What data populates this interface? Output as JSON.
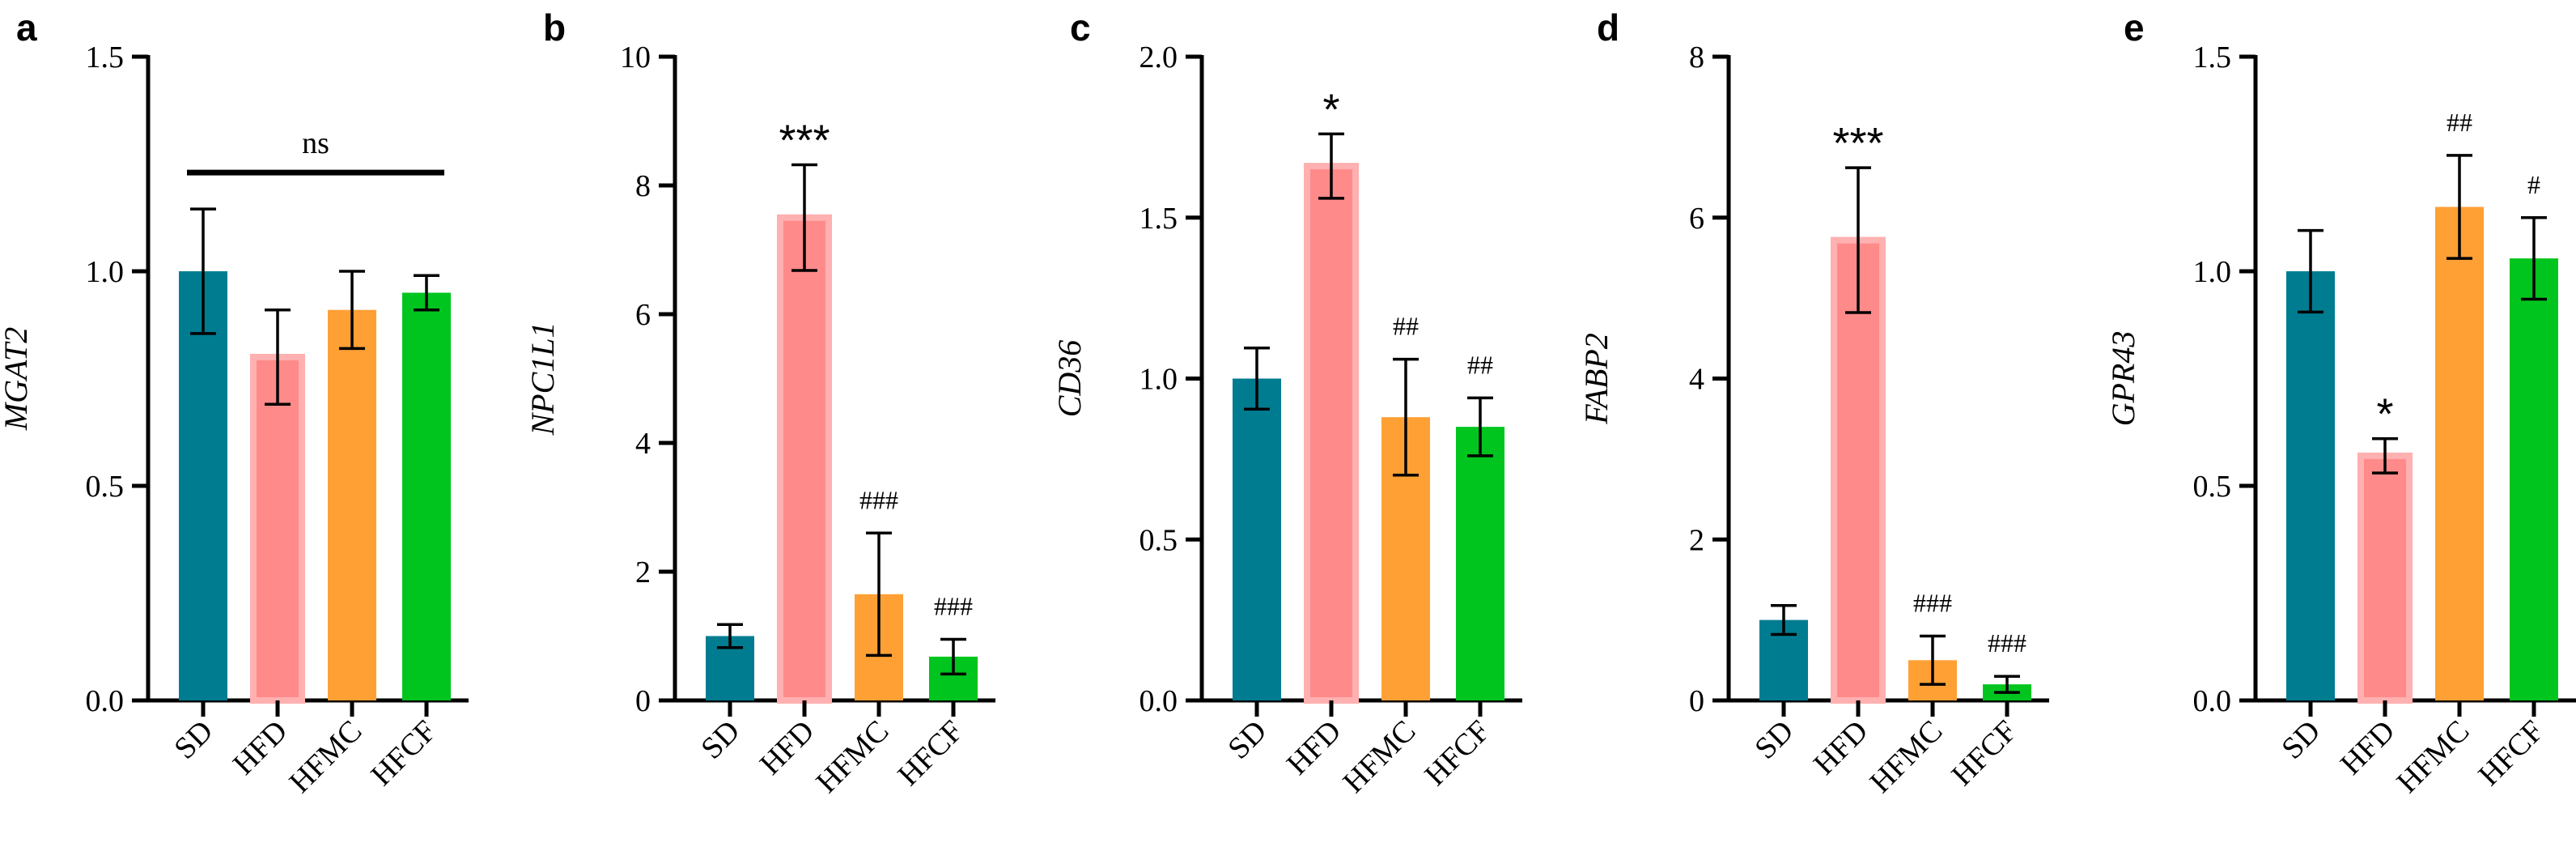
{
  "colors": {
    "SD": "#007c91",
    "HFD": "#ff8a8a",
    "HFD_border": "#ffb0b0",
    "HFMC": "#ffa035",
    "HFCF": "#00c51e"
  },
  "chart_data": [
    {
      "type": "bar",
      "panel": "a",
      "ylabel": "MGAT2",
      "categories": [
        "SD",
        "HFD",
        "HFMC",
        "HFCF"
      ],
      "values": [
        1.0,
        0.8,
        0.91,
        0.95
      ],
      "errors": [
        0.145,
        0.11,
        0.09,
        0.04
      ],
      "ylim": [
        0,
        1.5
      ],
      "yticks": [
        0,
        0.5,
        1.0,
        1.5
      ],
      "ytick_labels": [
        "0.0",
        "0.5",
        "1.0",
        "1.5"
      ],
      "annotations": [
        "",
        "",
        "",
        ""
      ],
      "bracket": {
        "label": "ns",
        "y": 1.23,
        "from": 0,
        "to": 3
      }
    },
    {
      "type": "bar",
      "panel": "b",
      "ylabel": "NPC1L1",
      "categories": [
        "SD",
        "HFD",
        "HFMC",
        "HFCF"
      ],
      "values": [
        1.0,
        7.5,
        1.65,
        0.68
      ],
      "errors": [
        0.18,
        0.82,
        0.95,
        0.27
      ],
      "ylim": [
        0,
        10
      ],
      "yticks": [
        0,
        2,
        4,
        6,
        8,
        10
      ],
      "ytick_labels": [
        "0",
        "2",
        "4",
        "6",
        "8",
        "10"
      ],
      "annotations": [
        "",
        "***",
        "###",
        "###"
      ]
    },
    {
      "type": "bar",
      "panel": "c",
      "ylabel": "CD36",
      "categories": [
        "SD",
        "HFD",
        "HFMC",
        "HFCF"
      ],
      "values": [
        1.0,
        1.66,
        0.88,
        0.85
      ],
      "errors": [
        0.095,
        0.1,
        0.18,
        0.09
      ],
      "ylim": [
        0,
        2.0
      ],
      "yticks": [
        0,
        0.5,
        1.0,
        1.5,
        2.0
      ],
      "ytick_labels": [
        "0.0",
        "0.5",
        "1.0",
        "1.5",
        "2.0"
      ],
      "annotations": [
        "",
        "*",
        "##",
        "##"
      ]
    },
    {
      "type": "bar",
      "panel": "d",
      "ylabel": "FABP2",
      "categories": [
        "SD",
        "HFD",
        "HFMC",
        "HFCF"
      ],
      "values": [
        1.0,
        5.72,
        0.5,
        0.2
      ],
      "errors": [
        0.18,
        0.9,
        0.3,
        0.1
      ],
      "ylim": [
        0,
        8
      ],
      "yticks": [
        0,
        2,
        4,
        6,
        8
      ],
      "ytick_labels": [
        "0",
        "2",
        "4",
        "6",
        "8"
      ],
      "annotations": [
        "",
        "***",
        "###",
        "###"
      ]
    },
    {
      "type": "bar",
      "panel": "e",
      "ylabel": "GPR43",
      "categories": [
        "SD",
        "HFD",
        "HFMC",
        "HFCF"
      ],
      "values": [
        1.0,
        0.57,
        1.15,
        1.03
      ],
      "errors": [
        0.095,
        0.04,
        0.12,
        0.095
      ],
      "ylim": [
        0,
        1.5
      ],
      "yticks": [
        0,
        0.5,
        1.0,
        1.5
      ],
      "ytick_labels": [
        "0.0",
        "0.5",
        "1.0",
        "1.5"
      ],
      "annotations": [
        "",
        "*",
        "##",
        "#"
      ]
    }
  ]
}
